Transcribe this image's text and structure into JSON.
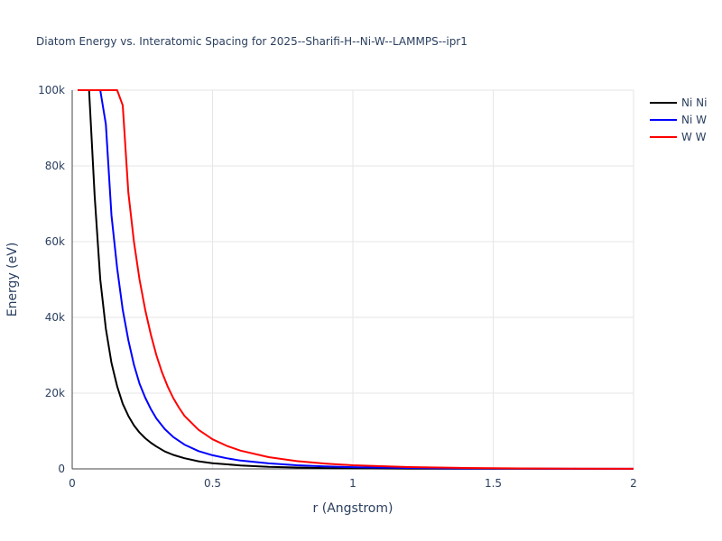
{
  "chart_data": {
    "type": "line",
    "title": "Diatom Energy vs. Interatomic Spacing for 2025--Sharifi-H--Ni-W--LAMMPS--ipr1",
    "xlabel": "r (Angstrom)",
    "ylabel": "Energy (eV)",
    "xlim": [
      0,
      2
    ],
    "ylim": [
      0,
      100000
    ],
    "x_ticks": [
      {
        "value": 0,
        "label": "0"
      },
      {
        "value": 0.5,
        "label": "0.5"
      },
      {
        "value": 1,
        "label": "1"
      },
      {
        "value": 1.5,
        "label": "1.5"
      },
      {
        "value": 2,
        "label": "2"
      }
    ],
    "y_ticks": [
      {
        "value": 0,
        "label": "0"
      },
      {
        "value": 20000,
        "label": "20k"
      },
      {
        "value": 40000,
        "label": "40k"
      },
      {
        "value": 60000,
        "label": "60k"
      },
      {
        "value": 80000,
        "label": "80k"
      },
      {
        "value": 100000,
        "label": "100k"
      }
    ],
    "grid": true,
    "legend_position": "top-right",
    "series": [
      {
        "name": "Ni Ni",
        "color": "#000000",
        "x": [
          0.02,
          0.06,
          0.08,
          0.1,
          0.12,
          0.14,
          0.16,
          0.18,
          0.2,
          0.22,
          0.24,
          0.26,
          0.28,
          0.3,
          0.33,
          0.36,
          0.4,
          0.45,
          0.5,
          0.6,
          0.7,
          0.8,
          0.9,
          1.0,
          1.2,
          1.4,
          1.6,
          1.8,
          2.0
        ],
        "y": [
          100000,
          100000,
          72000,
          50000,
          37000,
          28000,
          21800,
          17200,
          14000,
          11500,
          9600,
          8100,
          6900,
          5900,
          4600,
          3700,
          2800,
          2000,
          1500,
          900,
          550,
          350,
          220,
          150,
          70,
          35,
          18,
          10,
          5
        ]
      },
      {
        "name": "Ni W",
        "color": "#0000ff",
        "x": [
          0.02,
          0.1,
          0.12,
          0.14,
          0.16,
          0.18,
          0.2,
          0.22,
          0.24,
          0.26,
          0.28,
          0.3,
          0.33,
          0.36,
          0.4,
          0.45,
          0.5,
          0.55,
          0.6,
          0.7,
          0.8,
          0.9,
          1.0,
          1.2,
          1.4,
          1.6,
          1.8,
          2.0
        ],
        "y": [
          100000,
          100000,
          91000,
          67000,
          53000,
          42000,
          34000,
          27500,
          22500,
          18800,
          15800,
          13300,
          10500,
          8400,
          6400,
          4700,
          3600,
          2800,
          2200,
          1450,
          950,
          650,
          450,
          230,
          120,
          60,
          30,
          15
        ]
      },
      {
        "name": "W W",
        "color": "#ff0000",
        "x": [
          0.02,
          0.16,
          0.18,
          0.2,
          0.22,
          0.24,
          0.26,
          0.28,
          0.3,
          0.32,
          0.34,
          0.36,
          0.38,
          0.4,
          0.45,
          0.5,
          0.55,
          0.6,
          0.7,
          0.8,
          0.9,
          1.0,
          1.2,
          1.4,
          1.6,
          1.8,
          2.0
        ],
        "y": [
          100000,
          100000,
          96000,
          73000,
          60000,
          50000,
          42000,
          35500,
          30000,
          25500,
          21800,
          18700,
          16200,
          14000,
          10300,
          7800,
          6100,
          4800,
          3100,
          2050,
          1400,
          950,
          480,
          250,
          130,
          70,
          35
        ]
      }
    ]
  }
}
